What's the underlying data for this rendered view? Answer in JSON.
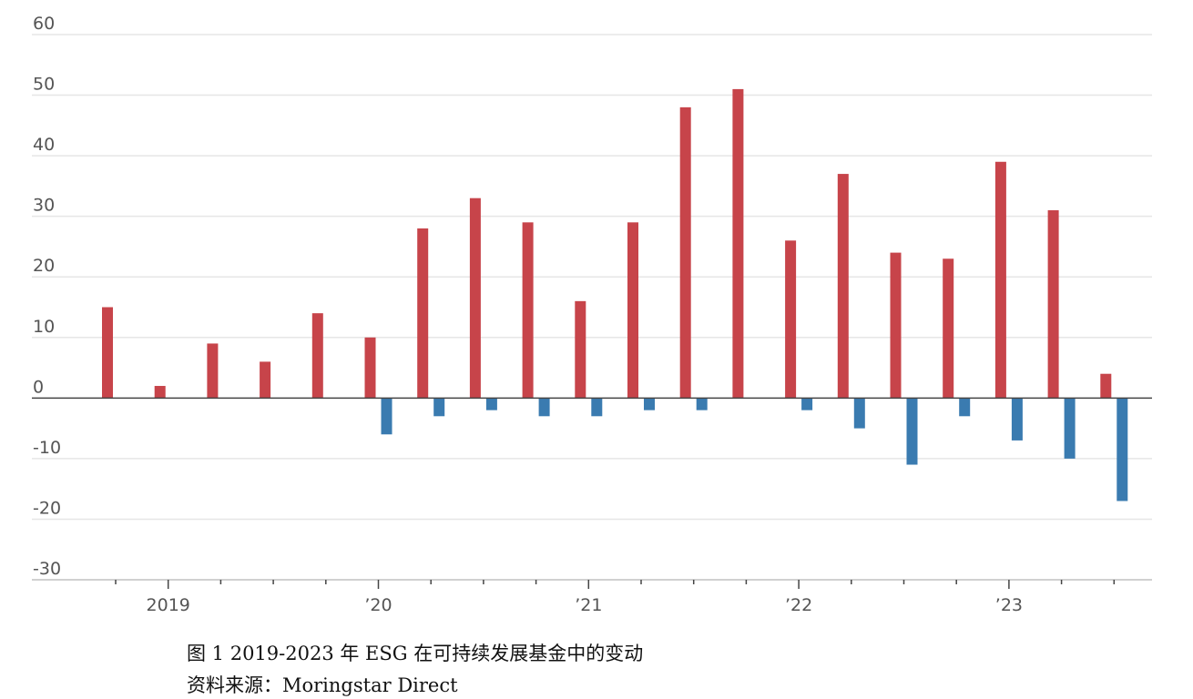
{
  "chart_data": {
    "type": "bar",
    "title": "",
    "xlabel": "",
    "ylabel": "",
    "ylim": [
      -30,
      60
    ],
    "yticks": [
      60,
      50,
      40,
      30,
      20,
      10,
      0,
      -10,
      -20,
      -30
    ],
    "ytick_labels": [
      "60",
      "50",
      "40",
      "30",
      "20",
      "10",
      "0",
      "-10",
      "-20",
      "-30"
    ],
    "x_tick_labels": [
      {
        "label": "2019",
        "quarter_index": 1
      },
      {
        "label": "’20",
        "quarter_index": 5
      },
      {
        "label": "’21",
        "quarter_index": 9
      },
      {
        "label": "’22",
        "quarter_index": 13
      },
      {
        "label": "’23",
        "quarter_index": 17
      }
    ],
    "quarters": [
      "2019 Q1",
      "2019 Q2",
      "2019 Q3",
      "2019 Q4",
      "2020 Q1",
      "2020 Q2",
      "2020 Q3",
      "2020 Q4",
      "2021 Q1",
      "2021 Q2",
      "2021 Q3",
      "2021 Q4",
      "2022 Q1",
      "2022 Q2",
      "2022 Q3",
      "2022 Q4",
      "2023 Q1",
      "2023 Q2",
      "2023 Q3",
      "2023 Q4"
    ],
    "grid": true,
    "series": [
      {
        "color": "#c7444a",
        "values": [
          15,
          2,
          9,
          6,
          14,
          10,
          28,
          33,
          29,
          16,
          29,
          48,
          51,
          26,
          37,
          24,
          23,
          39,
          31,
          4
        ]
      },
      {
        "color": "#3a7bb0",
        "values": [
          0,
          0,
          0,
          0,
          0,
          -6,
          -3,
          -2,
          -3,
          -3,
          -2,
          -2,
          0,
          -2,
          -5,
          -11,
          -3,
          -7,
          -10,
          -17
        ]
      }
    ]
  },
  "caption": {
    "title": "图  1 2019-2023 年 ESG 在可持续发展基金中的变动",
    "source": "资料来源：Moringstar Direct"
  },
  "colors": {
    "grid": "#e6e6e6",
    "axis": "#444444",
    "tick_text": "#555555"
  }
}
